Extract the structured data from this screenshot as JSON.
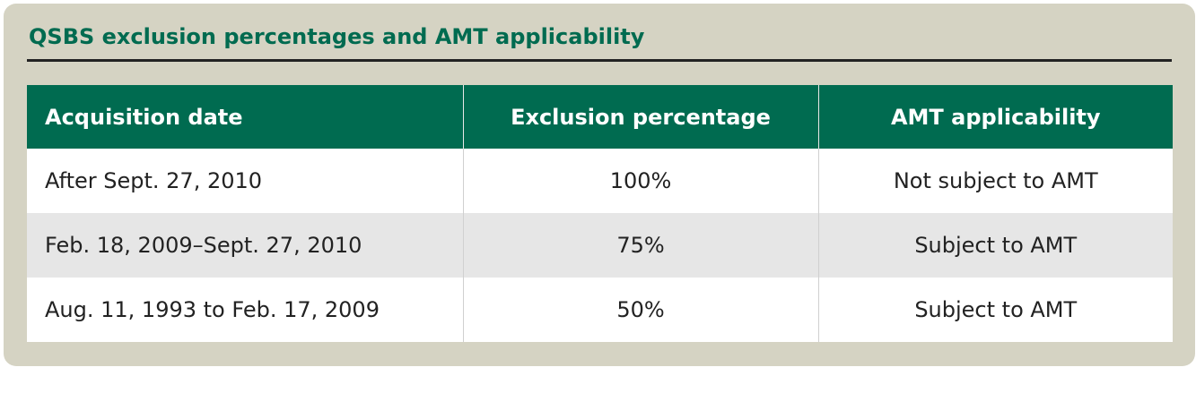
{
  "title": "QSBS exclusion percentages and AMT applicability",
  "colors": {
    "panel_background": "#d5d3c3",
    "title_green": "#006b50",
    "header_background": "#006b50",
    "alt_row": "#e6e6e6"
  },
  "table": {
    "headers": [
      "Acquisition date",
      "Exclusion percentage",
      "AMT applicability"
    ],
    "rows": [
      [
        "After Sept. 27, 2010",
        "100%",
        "Not subject to AMT"
      ],
      [
        "Feb. 18, 2009–Sept. 27, 2010",
        "75%",
        "Subject to AMT"
      ],
      [
        "Aug. 11, 1993 to Feb. 17, 2009",
        "50%",
        "Subject to AMT"
      ]
    ]
  }
}
